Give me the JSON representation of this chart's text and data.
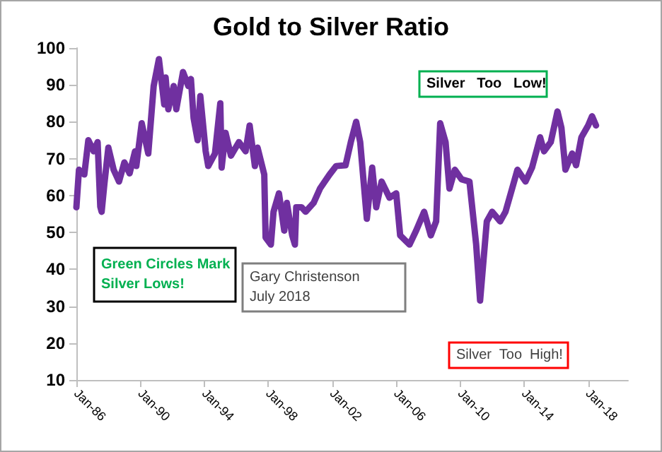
{
  "chart_data": {
    "type": "line",
    "title": "Gold to Silver Ratio",
    "annotations": [
      "Green Circles Mark\nSilver Lows!",
      "Gary Christenson\nJuly 2018",
      "Silver   Too   Low!",
      "Silver  Too  High!"
    ],
    "x": [
      "1986-01",
      "1986-03",
      "1986-07",
      "1986-10",
      "1987-02",
      "1987-05",
      "1987-07",
      "1987-08",
      "1987-10",
      "1988-01",
      "1988-05",
      "1988-09",
      "1989-01",
      "1989-05",
      "1989-09",
      "1989-10",
      "1990-02",
      "1990-07",
      "1990-11",
      "1991-03",
      "1991-07",
      "1991-08",
      "1991-10",
      "1992-02",
      "1992-04",
      "1992-09",
      "1993-01",
      "1993-03",
      "1993-05",
      "1993-08",
      "1993-10",
      "1994-02",
      "1994-04",
      "1994-09",
      "1995-01",
      "1995-02",
      "1995-05",
      "1995-09",
      "1996-03",
      "1996-08",
      "1996-11",
      "1997-03",
      "1997-05",
      "1997-10",
      "1997-11",
      "1998-03",
      "1998-05",
      "1998-09",
      "1999-01",
      "1999-03",
      "1999-07",
      "1999-09",
      "1999-10",
      "2000-02",
      "2000-05",
      "2000-11",
      "2001-04",
      "2001-11",
      "2002-04",
      "2002-11",
      "2003-03",
      "2003-07",
      "2003-10",
      "2004-03",
      "2004-07",
      "2004-10",
      "2005-02",
      "2005-08",
      "2006-01",
      "2006-04",
      "2006-11",
      "2007-04",
      "2007-10",
      "2008-03",
      "2008-07",
      "2008-10",
      "2009-02",
      "2009-05",
      "2009-09",
      "2010-02",
      "2010-08",
      "2011-01",
      "2011-04",
      "2011-09",
      "2012-01",
      "2012-07",
      "2012-11",
      "2013-04",
      "2013-08",
      "2014-02",
      "2014-07",
      "2015-01",
      "2015-04",
      "2015-09",
      "2016-02",
      "2016-05",
      "2016-08",
      "2017-01",
      "2017-04",
      "2017-08",
      "2018-01",
      "2018-04",
      "2018-07"
    ],
    "series": [
      {
        "color": "#7030a0",
        "values": [
          56.8,
          67,
          65.7,
          75,
          72,
          74.5,
          57,
          55.6,
          63,
          73,
          67,
          63.8,
          69,
          66,
          72,
          68,
          79.6,
          71.4,
          89.7,
          97,
          84.7,
          92,
          83.4,
          89.7,
          83.4,
          93.5,
          89.7,
          91.6,
          81,
          75,
          87,
          72,
          68,
          71.4,
          85,
          67.6,
          77,
          70.8,
          74.5,
          72,
          79,
          68,
          73,
          65.7,
          48.6,
          46.7,
          55.6,
          60.6,
          50.5,
          58,
          49.2,
          46.7,
          56.8,
          56.8,
          55.6,
          58,
          62,
          65.7,
          68,
          68.2,
          74.5,
          80,
          74.5,
          53.7,
          67.6,
          56.8,
          63.8,
          59.4,
          60.6,
          49.2,
          46.7,
          50.5,
          55.6,
          49.2,
          53,
          79.6,
          74.5,
          61.9,
          67,
          64.4,
          63.8,
          46.7,
          31.5,
          53,
          55.6,
          53,
          55.6,
          61.9,
          67,
          63.8,
          67.6,
          75.8,
          72,
          74.5,
          82.8,
          78.4,
          67,
          71.4,
          68.2,
          75.8,
          79,
          81.5,
          79
        ]
      }
    ],
    "xlim": [
      "1986-01",
      "2020-07"
    ],
    "xticks": [
      {
        "value": "1986-01",
        "label": "Jan-86"
      },
      {
        "value": "1990-01",
        "label": "Jan-90"
      },
      {
        "value": "1994-01",
        "label": "Jan-94"
      },
      {
        "value": "1998-01",
        "label": "Jan-98"
      },
      {
        "value": "2002-01",
        "label": "Jan-02"
      },
      {
        "value": "2006-01",
        "label": "Jan-06"
      },
      {
        "value": "2010-01",
        "label": "Jan-10"
      },
      {
        "value": "2014-01",
        "label": "Jan-14"
      },
      {
        "value": "2018-01",
        "label": "Jan-18"
      }
    ],
    "ylim": [
      10,
      100
    ],
    "yticks": [
      10,
      20,
      30,
      40,
      50,
      60,
      70,
      80,
      90,
      100
    ],
    "grid": false,
    "marker": "none",
    "line_style": "solid"
  }
}
